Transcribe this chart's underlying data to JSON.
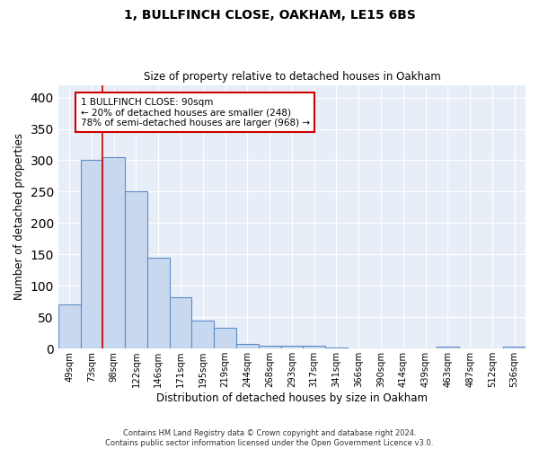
{
  "title1": "1, BULLFINCH CLOSE, OAKHAM, LE15 6BS",
  "title2": "Size of property relative to detached houses in Oakham",
  "xlabel": "Distribution of detached houses by size in Oakham",
  "ylabel": "Number of detached properties",
  "categories": [
    "49sqm",
    "73sqm",
    "98sqm",
    "122sqm",
    "146sqm",
    "171sqm",
    "195sqm",
    "219sqm",
    "244sqm",
    "268sqm",
    "293sqm",
    "317sqm",
    "341sqm",
    "366sqm",
    "390sqm",
    "414sqm",
    "439sqm",
    "463sqm",
    "487sqm",
    "512sqm",
    "536sqm"
  ],
  "values": [
    70,
    300,
    305,
    250,
    145,
    82,
    45,
    33,
    8,
    5,
    5,
    5,
    2,
    0,
    0,
    0,
    0,
    3,
    0,
    0,
    3
  ],
  "bar_color": "#c8d9ef",
  "bar_edge_color": "#5b8dc8",
  "background_color": "#e8eef8",
  "grid_color": "#ffffff",
  "vline_x": 1.5,
  "annotation_line1": "1 BULLFINCH CLOSE: 90sqm",
  "annotation_line2": "← 20% of detached houses are smaller (248)",
  "annotation_line3": "78% of semi-detached houses are larger (968) →",
  "annotation_box_color": "#ffffff",
  "annotation_box_edge": "#cc0000",
  "footer": "Contains HM Land Registry data © Crown copyright and database right 2024.\nContains public sector information licensed under the Open Government Licence v3.0.",
  "ylim": [
    0,
    420
  ],
  "yticks": [
    0,
    50,
    100,
    150,
    200,
    250,
    300,
    350,
    400
  ]
}
